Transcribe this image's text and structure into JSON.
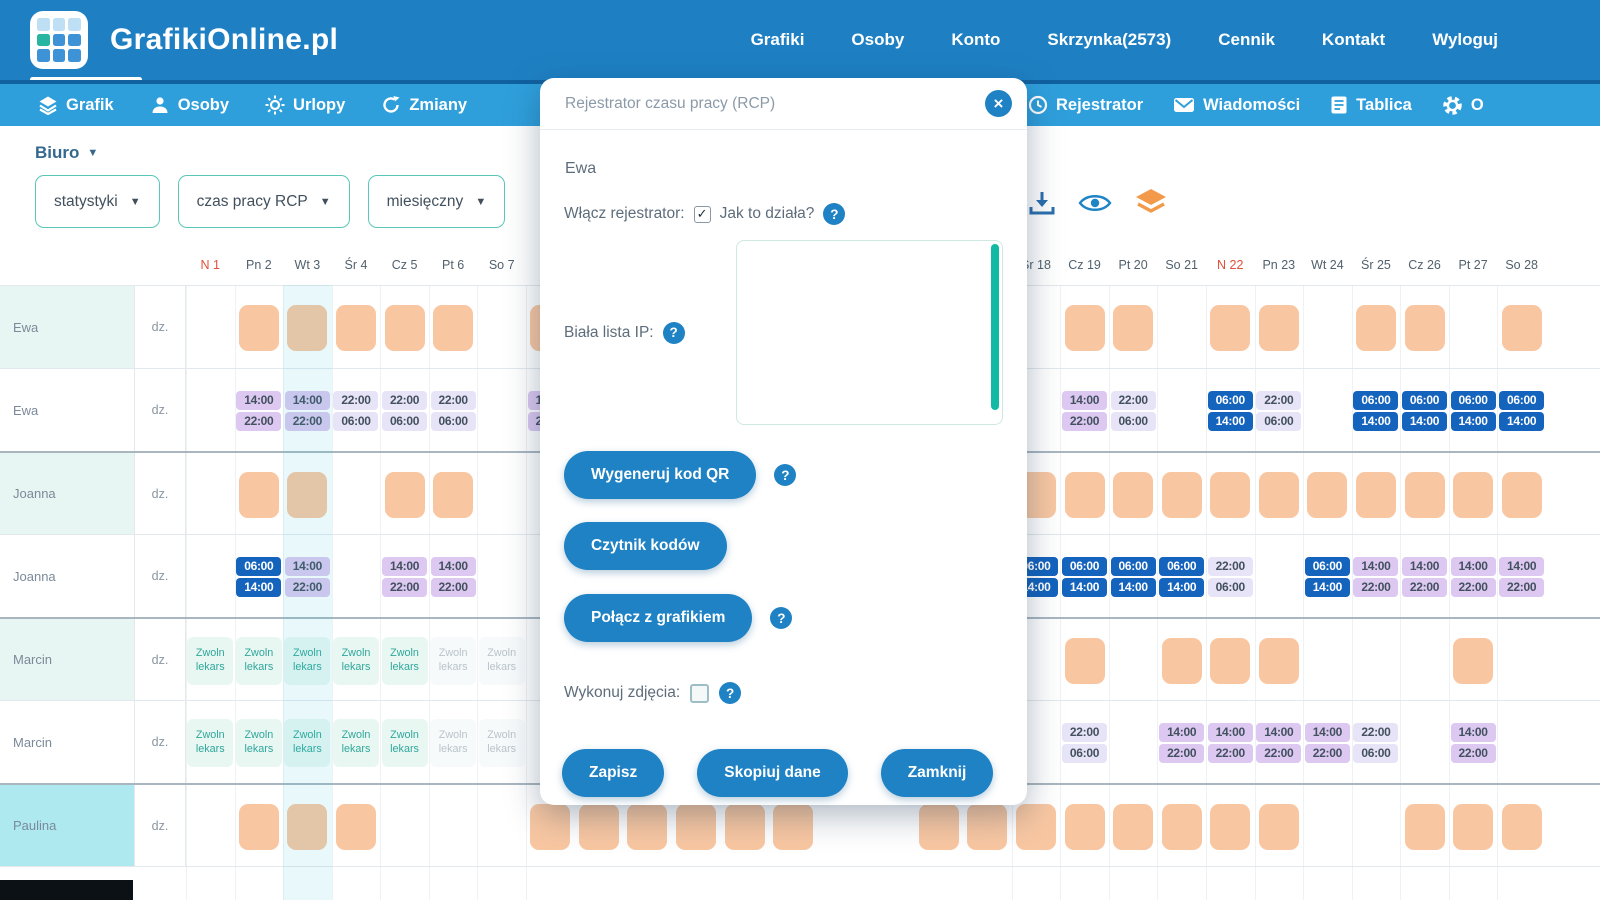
{
  "topnav": {
    "brand": "GrafikiOnline.pl",
    "items": [
      {
        "label": "Grafiki"
      },
      {
        "label": "Osoby"
      },
      {
        "label": "Konto"
      },
      {
        "label": "Skrzynka(2573)"
      },
      {
        "label": "Cennik"
      },
      {
        "label": "Kontakt"
      },
      {
        "label": "Wyloguj"
      }
    ]
  },
  "subnav": {
    "left": [
      {
        "label": "Grafik",
        "icon": "schedule-icon",
        "active": true
      },
      {
        "label": "Osoby",
        "icon": "person-icon"
      },
      {
        "label": "Urlopy",
        "icon": "sun-icon"
      },
      {
        "label": "Zmiany",
        "icon": "shift-icon"
      }
    ],
    "right": [
      {
        "label": "Rejestrator",
        "icon": "clock-icon"
      },
      {
        "label": "Wiadomości",
        "icon": "mail-icon"
      },
      {
        "label": "Tablica",
        "icon": "board-icon"
      },
      {
        "label": "O",
        "icon": "gear-icon"
      }
    ]
  },
  "toolbar": {
    "office": "Biuro",
    "dropdowns": [
      "statystyki",
      "czas pracy RCP",
      "miesięczny"
    ],
    "icons": [
      "download-icon",
      "eye-icon",
      "layers-icon"
    ]
  },
  "modal": {
    "title": "Rejestrator czasu pracy (RCP)",
    "person": "Ewa",
    "enable_label": "Włącz rejestrator:",
    "enable_checked": true,
    "how_it_works": "Jak to działa?",
    "whitelist_label": "Biała lista IP:",
    "whitelist_value": "",
    "photos_label": "Wykonuj zdjęcia:",
    "photos_checked": false,
    "buttons": {
      "qr": "Wygeneruj kod QR",
      "reader": "Czytnik kodów",
      "link": "Połącz z grafikiem",
      "save": "Zapisz",
      "copy": "Skopiuj dane",
      "close": "Zamknij"
    }
  },
  "colors": {
    "topbar": "#1e80c3",
    "subnav": "#2f9fdb",
    "accent_teal": "#12b9a4",
    "day_off": "#f8c7a2",
    "shift_purple": "#dcc8f1",
    "shift_lavender": "#e8e4f7",
    "shift_dark_blue": "#1463bd",
    "sunday_red": "#e2503b",
    "button_blue": "#1e82c4"
  },
  "grid": {
    "note_lines": [
      "Zwoln",
      "lekars"
    ],
    "highlight_day": 3,
    "days": [
      {
        "d": 1,
        "label": "N 1",
        "red": true
      },
      {
        "d": 2,
        "label": "Pn 2"
      },
      {
        "d": 3,
        "label": "Wt 3"
      },
      {
        "d": 4,
        "label": "Śr 4"
      },
      {
        "d": 5,
        "label": "Cz 5"
      },
      {
        "d": 6,
        "label": "Pt 6"
      },
      {
        "d": 7,
        "label": "So 7"
      },
      {
        "d": 8,
        "label": ""
      },
      {
        "d": 18,
        "label": "Śr 18"
      },
      {
        "d": 19,
        "label": "Cz 19"
      },
      {
        "d": 20,
        "label": "Pt 20"
      },
      {
        "d": 21,
        "label": "So 21"
      },
      {
        "d": 22,
        "label": "N 22",
        "red": true
      },
      {
        "d": 23,
        "label": "Pn 23"
      },
      {
        "d": 24,
        "label": "Wt 24"
      },
      {
        "d": 25,
        "label": "Śr 25"
      },
      {
        "d": 26,
        "label": "Cz 26"
      },
      {
        "d": 27,
        "label": "Pt 27"
      },
      {
        "d": 28,
        "label": "So 28"
      }
    ],
    "rows": [
      {
        "name": "Ewa",
        "sub": "dz.",
        "tint": "mint",
        "cells": [
          {
            "d": 2,
            "type": "off"
          },
          {
            "d": 3,
            "type": "off"
          },
          {
            "d": 4,
            "type": "off"
          },
          {
            "d": 5,
            "type": "off"
          },
          {
            "d": 6,
            "type": "off"
          },
          {
            "d": 8,
            "type": "off"
          },
          {
            "d": 19,
            "type": "off"
          },
          {
            "d": 20,
            "type": "off"
          },
          {
            "d": 22,
            "type": "off"
          },
          {
            "d": 23,
            "type": "off"
          },
          {
            "d": 25,
            "type": "off"
          },
          {
            "d": 26,
            "type": "off"
          },
          {
            "d": 28,
            "type": "off"
          }
        ]
      },
      {
        "name": "Ewa",
        "sub": "dz.",
        "tint": "",
        "cells": [
          {
            "d": 2,
            "type": "t",
            "v": [
              "14:00",
              "22:00"
            ],
            "s": "purple"
          },
          {
            "d": 3,
            "type": "t",
            "v": [
              "14:00",
              "22:00"
            ],
            "s": "purple"
          },
          {
            "d": 4,
            "type": "t",
            "v": [
              "22:00",
              "06:00"
            ],
            "s": "lav"
          },
          {
            "d": 5,
            "type": "t",
            "v": [
              "22:00",
              "06:00"
            ],
            "s": "lav"
          },
          {
            "d": 6,
            "type": "t",
            "v": [
              "22:00",
              "06:00"
            ],
            "s": "lav"
          },
          {
            "d": 8,
            "type": "t",
            "v": [
              "14:00",
              "22:00"
            ],
            "s": "purple"
          },
          {
            "d": 19,
            "type": "t",
            "v": [
              "14:00",
              "22:00"
            ],
            "s": "purple"
          },
          {
            "d": 20,
            "type": "t",
            "v": [
              "22:00",
              "06:00"
            ],
            "s": "lav"
          },
          {
            "d": 22,
            "type": "t",
            "v": [
              "06:00",
              "14:00"
            ],
            "s": "dark"
          },
          {
            "d": 23,
            "type": "t",
            "v": [
              "22:00",
              "06:00"
            ],
            "s": "lav"
          },
          {
            "d": 25,
            "type": "t",
            "v": [
              "06:00",
              "14:00"
            ],
            "s": "dark"
          },
          {
            "d": 26,
            "type": "t",
            "v": [
              "06:00",
              "14:00"
            ],
            "s": "dark"
          },
          {
            "d": 27,
            "type": "t",
            "v": [
              "06:00",
              "14:00"
            ],
            "s": "dark"
          },
          {
            "d": 28,
            "type": "t",
            "v": [
              "06:00",
              "14:00"
            ],
            "s": "dark"
          }
        ]
      },
      {
        "name": "Joanna",
        "sub": "dz.",
        "tint": "mint",
        "cells": [
          {
            "d": 2,
            "type": "off"
          },
          {
            "d": 3,
            "type": "off"
          },
          {
            "d": 5,
            "type": "off"
          },
          {
            "d": 6,
            "type": "off"
          },
          {
            "d": 18,
            "type": "off"
          },
          {
            "d": 19,
            "type": "off"
          },
          {
            "d": 20,
            "type": "off"
          },
          {
            "d": 21,
            "type": "off"
          },
          {
            "d": 22,
            "type": "off"
          },
          {
            "d": 23,
            "type": "off"
          },
          {
            "d": 24,
            "type": "off"
          },
          {
            "d": 25,
            "type": "off"
          },
          {
            "d": 26,
            "type": "off"
          },
          {
            "d": 27,
            "type": "off"
          },
          {
            "d": 28,
            "type": "off"
          }
        ]
      },
      {
        "name": "Joanna",
        "sub": "dz.",
        "tint": "",
        "cells": [
          {
            "d": 2,
            "type": "t",
            "v": [
              "06:00",
              "14:00"
            ],
            "s": "dark"
          },
          {
            "d": 3,
            "type": "t",
            "v": [
              "14:00",
              "22:00"
            ],
            "s": "purple"
          },
          {
            "d": 5,
            "type": "t",
            "v": [
              "14:00",
              "22:00"
            ],
            "s": "purple"
          },
          {
            "d": 6,
            "type": "t",
            "v": [
              "14:00",
              "22:00"
            ],
            "s": "purple"
          },
          {
            "d": 18,
            "type": "t",
            "v": [
              "06:00",
              "14:00"
            ],
            "s": "dark"
          },
          {
            "d": 19,
            "type": "t",
            "v": [
              "06:00",
              "14:00"
            ],
            "s": "dark"
          },
          {
            "d": 20,
            "type": "t",
            "v": [
              "06:00",
              "14:00"
            ],
            "s": "dark"
          },
          {
            "d": 21,
            "type": "t",
            "v": [
              "06:00",
              "14:00"
            ],
            "s": "dark"
          },
          {
            "d": 22,
            "type": "t",
            "v": [
              "22:00",
              "06:00"
            ],
            "s": "lav"
          },
          {
            "d": 24,
            "type": "t",
            "v": [
              "06:00",
              "14:00"
            ],
            "s": "dark"
          },
          {
            "d": 25,
            "type": "t",
            "v": [
              "14:00",
              "22:00"
            ],
            "s": "purple"
          },
          {
            "d": 26,
            "type": "t",
            "v": [
              "14:00",
              "22:00"
            ],
            "s": "purple"
          },
          {
            "d": 27,
            "type": "t",
            "v": [
              "14:00",
              "22:00"
            ],
            "s": "purple"
          },
          {
            "d": 28,
            "type": "t",
            "v": [
              "14:00",
              "22:00"
            ],
            "s": "purple"
          }
        ]
      },
      {
        "name": "Marcin",
        "sub": "dz.",
        "tint": "mint",
        "cells": [
          {
            "d": 1,
            "type": "note"
          },
          {
            "d": 2,
            "type": "note"
          },
          {
            "d": 3,
            "type": "note"
          },
          {
            "d": 4,
            "type": "note"
          },
          {
            "d": 5,
            "type": "note"
          },
          {
            "d": 6,
            "type": "note",
            "muted": true
          },
          {
            "d": 7,
            "type": "note",
            "muted": true
          },
          {
            "d": 19,
            "type": "off"
          },
          {
            "d": 21,
            "type": "off"
          },
          {
            "d": 22,
            "type": "off"
          },
          {
            "d": 23,
            "type": "off"
          },
          {
            "d": 27,
            "type": "off"
          }
        ]
      },
      {
        "name": "Marcin",
        "sub": "dz.",
        "tint": "",
        "cells": [
          {
            "d": 1,
            "type": "note"
          },
          {
            "d": 2,
            "type": "note"
          },
          {
            "d": 3,
            "type": "note"
          },
          {
            "d": 4,
            "type": "note"
          },
          {
            "d": 5,
            "type": "note"
          },
          {
            "d": 6,
            "type": "note",
            "muted": true
          },
          {
            "d": 7,
            "type": "note",
            "muted": true
          },
          {
            "d": 19,
            "type": "t",
            "v": [
              "22:00",
              "06:00"
            ],
            "s": "lav"
          },
          {
            "d": 21,
            "type": "t",
            "v": [
              "14:00",
              "22:00"
            ],
            "s": "purple"
          },
          {
            "d": 22,
            "type": "t",
            "v": [
              "14:00",
              "22:00"
            ],
            "s": "purple"
          },
          {
            "d": 23,
            "type": "t",
            "v": [
              "14:00",
              "22:00"
            ],
            "s": "purple"
          },
          {
            "d": 24,
            "type": "t",
            "v": [
              "14:00",
              "22:00"
            ],
            "s": "purple"
          },
          {
            "d": 25,
            "type": "t",
            "v": [
              "22:00",
              "06:00"
            ],
            "s": "lav"
          },
          {
            "d": 27,
            "type": "t",
            "v": [
              "14:00",
              "22:00"
            ],
            "s": "purple"
          }
        ]
      },
      {
        "name": "Paulina",
        "sub": "dz.",
        "tint": "cyan",
        "cells": [
          {
            "d": 2,
            "type": "off"
          },
          {
            "d": 3,
            "type": "off"
          },
          {
            "d": 4,
            "type": "off"
          },
          {
            "d": 8,
            "type": "off"
          },
          {
            "d": 9,
            "type": "off"
          },
          {
            "d": 10,
            "type": "off"
          },
          {
            "d": 11,
            "type": "off"
          },
          {
            "d": 12,
            "type": "off"
          },
          {
            "d": 13,
            "type": "off"
          },
          {
            "d": 16,
            "type": "off"
          },
          {
            "d": 17,
            "type": "off"
          },
          {
            "d": 18,
            "type": "off"
          },
          {
            "d": 19,
            "type": "off"
          },
          {
            "d": 20,
            "type": "off"
          },
          {
            "d": 21,
            "type": "off"
          },
          {
            "d": 22,
            "type": "off"
          },
          {
            "d": 23,
            "type": "off"
          },
          {
            "d": 26,
            "type": "off"
          },
          {
            "d": 27,
            "type": "off"
          },
          {
            "d": 28,
            "type": "off"
          }
        ]
      }
    ]
  }
}
